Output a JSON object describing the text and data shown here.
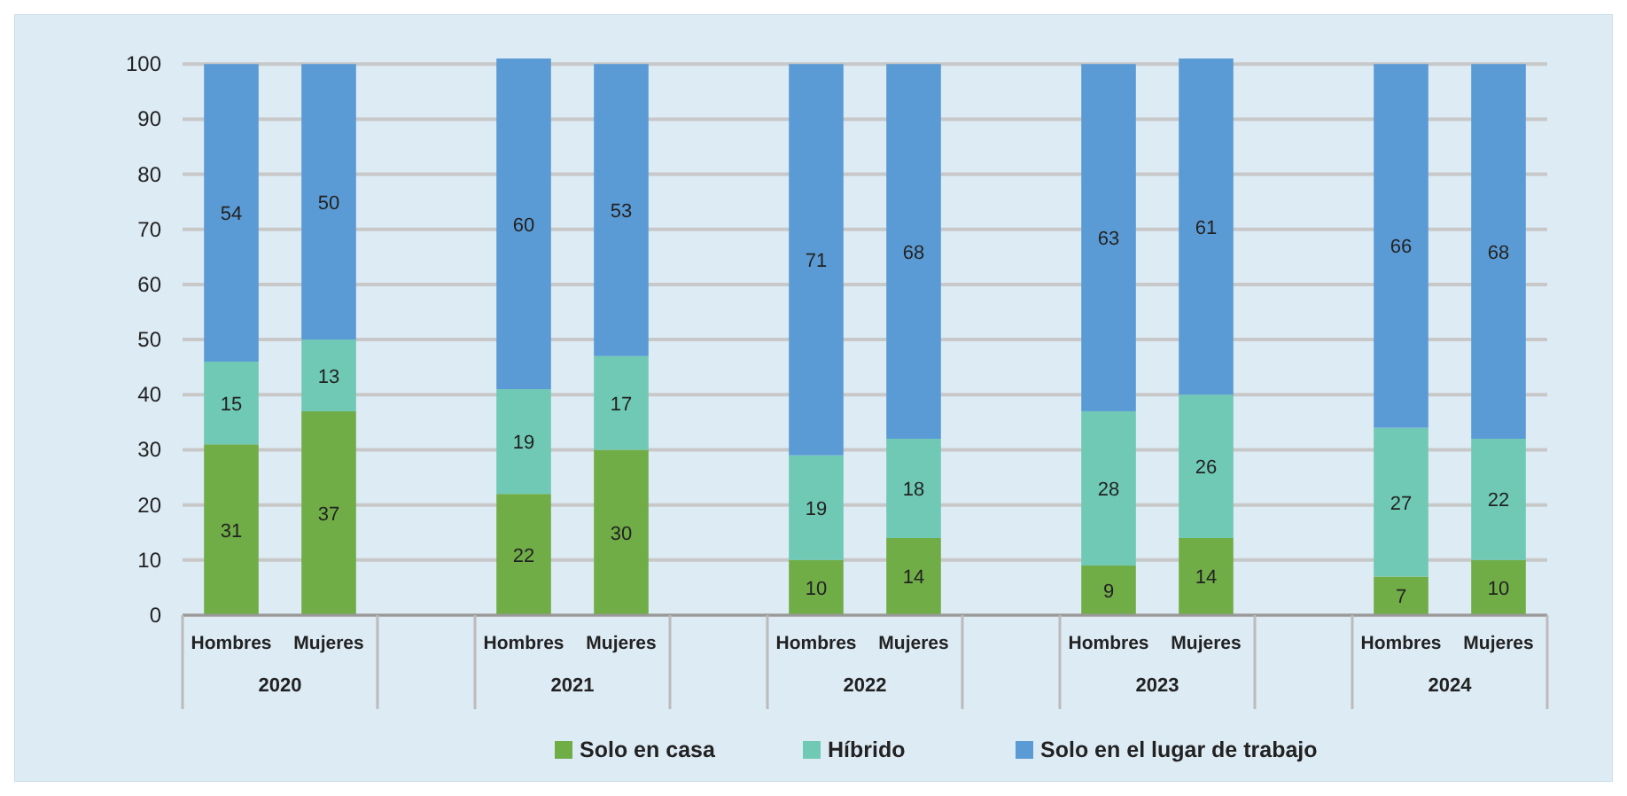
{
  "chart_data": {
    "type": "bar",
    "stacked": true,
    "categories": [
      "Hombres",
      "Mujeres",
      null,
      "Hombres",
      "Mujeres",
      null,
      "Hombres",
      "Mujeres",
      null,
      "Hombres",
      "Mujeres",
      null,
      "Hombres",
      "Mujeres"
    ],
    "annotations": [
      "2020",
      "2021",
      "2022",
      "2023",
      "2024"
    ],
    "series": [
      {
        "name": "Solo en casa",
        "color": "#70ad47",
        "values": [
          31,
          37,
          null,
          22,
          30,
          null,
          10,
          14,
          null,
          9,
          14,
          null,
          7,
          10
        ],
        "value_labels": [
          "31",
          "37",
          null,
          "22",
          "30",
          null,
          "10",
          "14",
          null,
          "9",
          "14",
          null,
          "7",
          "10"
        ]
      },
      {
        "name": "Híbrido",
        "color": "#6fc9b4",
        "values": [
          15,
          13,
          null,
          19,
          17,
          null,
          19,
          18,
          null,
          28,
          26,
          null,
          27,
          22
        ],
        "value_labels": [
          "15",
          "13",
          null,
          "19",
          "17",
          null,
          "19",
          "18",
          null,
          "28",
          "26",
          null,
          "27",
          "22"
        ]
      },
      {
        "name": "Solo en el lugar de trabajo",
        "color": "#5b9bd5",
        "values": [
          54,
          50,
          null,
          60,
          53,
          null,
          71,
          68,
          null,
          63,
          61,
          null,
          66,
          68
        ],
        "value_labels": [
          "54",
          "50",
          null,
          "60",
          "53",
          null,
          "71",
          "68",
          null,
          "63",
          "61",
          null,
          "66",
          "68"
        ]
      }
    ],
    "ylim": [
      0,
      101
    ],
    "yticks": [
      0,
      10,
      20,
      30,
      40,
      50,
      60,
      70,
      80,
      90,
      100
    ],
    "grid": "y",
    "legend": "bottom"
  }
}
